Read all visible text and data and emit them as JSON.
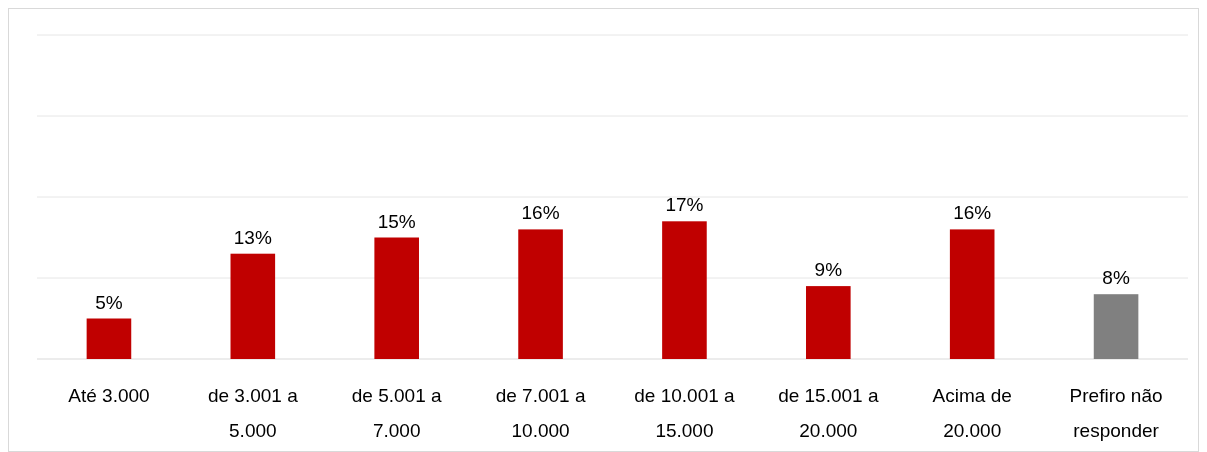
{
  "chart_data": {
    "type": "bar",
    "categories": [
      "Até 3.000",
      "de 3.001 a 5.000",
      "de 5.001 a 7.000",
      "de 7.001 a 10.000",
      "de 10.001 a 15.000",
      "de 15.001 a 20.000",
      "Acima de 20.000",
      "Prefiro não responder"
    ],
    "values": [
      5,
      13,
      15,
      16,
      17,
      9,
      16,
      8
    ],
    "colors": [
      "#c00000",
      "#c00000",
      "#c00000",
      "#c00000",
      "#c00000",
      "#c00000",
      "#c00000",
      "#808080"
    ],
    "value_labels": [
      "5%",
      "13%",
      "15%",
      "16%",
      "17%",
      "9%",
      "16%",
      "8%"
    ],
    "ylim": [
      0,
      40
    ],
    "yticks": [
      {
        "value": 0,
        "label": null
      },
      {
        "value": 10,
        "label": null
      },
      {
        "value": 20,
        "label": null
      },
      {
        "value": 30,
        "label": null
      },
      {
        "value": 40,
        "label": null
      }
    ],
    "tick_labels": "x",
    "grid": "y"
  }
}
